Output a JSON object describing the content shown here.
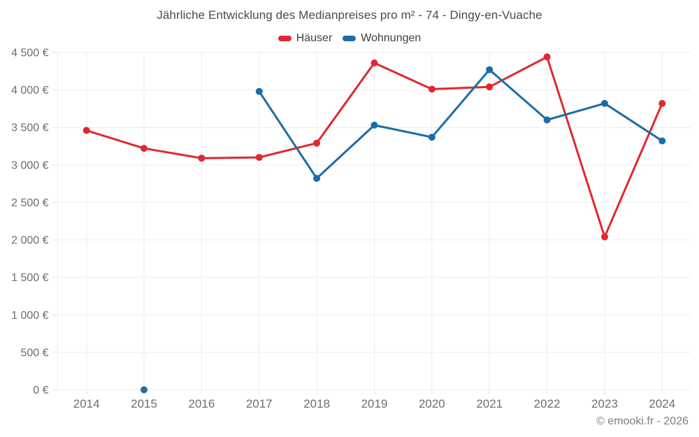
{
  "page": {
    "footer": "© emooki.fr - 2026"
  },
  "colors": {
    "grid": "#ececec",
    "tick": "#e3e3e3",
    "axis_text": "#6e6e6e",
    "title_text": "#4a4a4a",
    "footer_text": "#7d7d7d",
    "haeuser_red": "#e0282f",
    "wohnungen_blue": "#1a6da8"
  },
  "chart_data": {
    "type": "line",
    "title": "Jährliche Entwicklung des Medianpreises pro m² - 74 - Dingy-en-Vuache",
    "xlabel": "",
    "ylabel": "",
    "categories": [
      "2014",
      "2015",
      "2016",
      "2017",
      "2018",
      "2019",
      "2020",
      "2021",
      "2022",
      "2023",
      "2024"
    ],
    "series": [
      {
        "name": "Häuser",
        "color": "#e0282f",
        "values": [
          3460,
          3220,
          3090,
          3100,
          3290,
          4360,
          4010,
          4040,
          4440,
          2040,
          3820
        ]
      },
      {
        "name": "Wohnungen",
        "color": "#1a6da8",
        "values": [
          null,
          0,
          null,
          3980,
          2820,
          3530,
          3370,
          4270,
          3600,
          3820,
          3320
        ]
      }
    ],
    "ylim": [
      0,
      4500
    ],
    "ytick_step": 500,
    "ytick_labels": [
      "0 €",
      "500 €",
      "1 000 €",
      "1 500 €",
      "2 000 €",
      "2 500 €",
      "3 000 €",
      "3 500 €",
      "4 000 €",
      "4 500 €"
    ],
    "grid": true,
    "legend_position": "top",
    "unit_suffix": " €"
  }
}
